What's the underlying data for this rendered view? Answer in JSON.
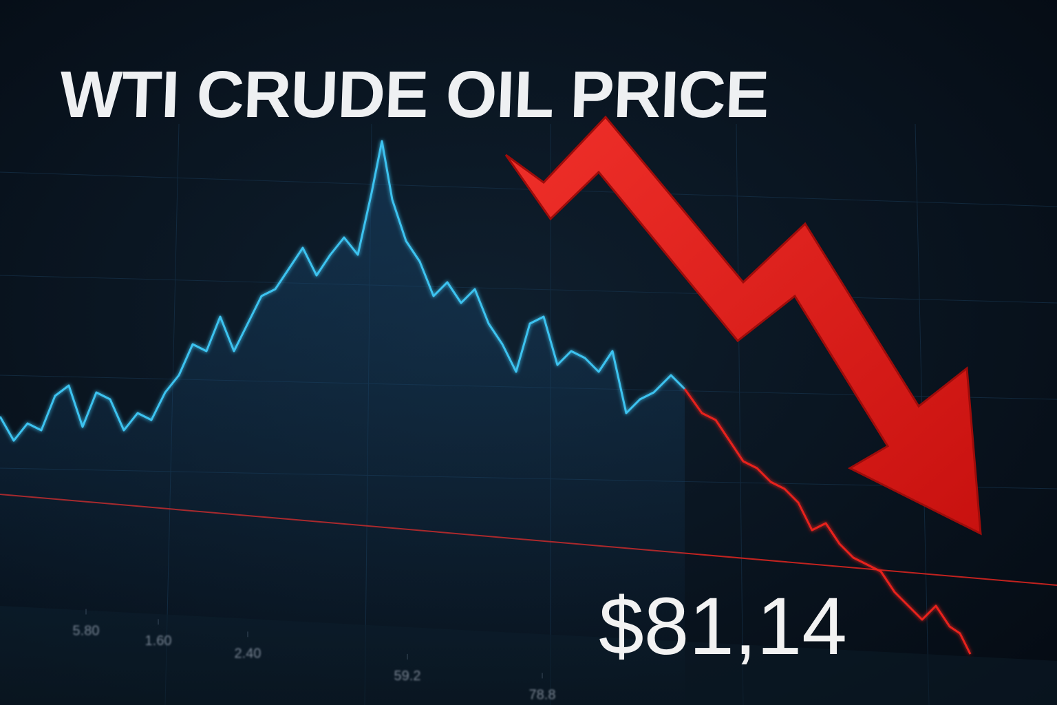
{
  "chart_data": {
    "type": "line",
    "title": "WTI CRUDE OIL PRICE",
    "annotation": "$81,14",
    "xlim": [
      0,
      153.6
    ],
    "ylim": [
      0,
      102.4
    ],
    "xticks": [
      {
        "value": 12.5,
        "label": "5.80"
      },
      {
        "value": 23,
        "label": "1.60"
      },
      {
        "value": 36,
        "label": "2.40"
      },
      59.2,
      78.8
    ],
    "series": [
      {
        "color": "#3cc3f0",
        "x": [
          0,
          2,
          4,
          6,
          8,
          10,
          12,
          14,
          16,
          18,
          20,
          22,
          24,
          26,
          28,
          30,
          32,
          34,
          36,
          38,
          40,
          42,
          44,
          46,
          48,
          50,
          52,
          54,
          55.5,
          57,
          59,
          61,
          63,
          65,
          67,
          69,
          71,
          73,
          75,
          77,
          79,
          81,
          83,
          85,
          87,
          89,
          91,
          93,
          95,
          97.5,
          99.5
        ],
        "values": [
          41.9,
          38.4,
          40.9,
          39.9,
          44.9,
          46.4,
          40.4,
          45.4,
          44.4,
          39.9,
          42.4,
          41.4,
          45.4,
          47.9,
          52.4,
          51.4,
          56.4,
          51.4,
          55.4,
          59.4,
          60.4,
          63.4,
          66.4,
          62.4,
          65.4,
          67.9,
          65.4,
          74.4,
          81.9,
          73.4,
          67.4,
          64.4,
          59.4,
          61.4,
          58.4,
          60.4,
          55.4,
          52.4,
          48.4,
          55.4,
          56.4,
          49.4,
          51.4,
          50.4,
          48.4,
          51.4,
          42.4,
          44.4,
          45.4,
          47.9,
          45.9
        ]
      },
      {
        "color": "#e8221d",
        "x": [
          99.5,
          102,
          104,
          106,
          108,
          110,
          112,
          114,
          116,
          118,
          120,
          122,
          124,
          126,
          128,
          130,
          132,
          134,
          136,
          138,
          139.5,
          141
        ],
        "values": [
          45.9,
          42.4,
          41.4,
          38.4,
          35.4,
          34.4,
          32.4,
          31.4,
          29.4,
          25.4,
          26.4,
          23.4,
          21.4,
          20.4,
          19.4,
          16.4,
          14.4,
          12.4,
          14.4,
          11.4,
          10.4,
          7.4
        ]
      }
    ]
  }
}
